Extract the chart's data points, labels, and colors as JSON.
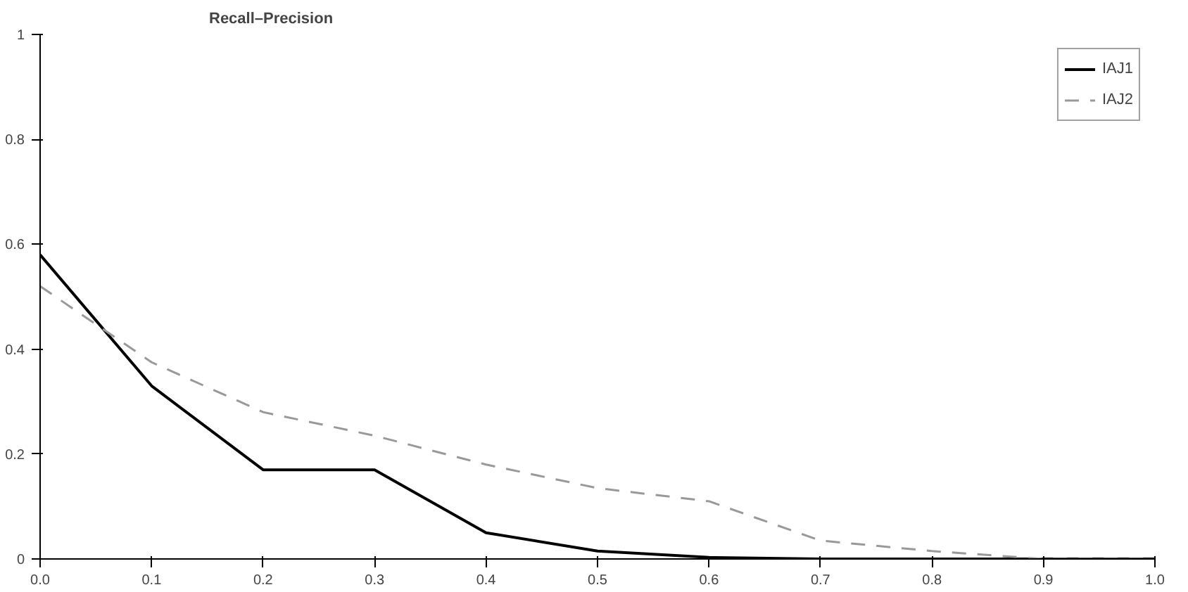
{
  "chart_data": {
    "type": "line",
    "title": "Recall–Precision",
    "x": [
      0,
      0.1,
      0.2,
      0.3,
      0.4,
      0.5,
      0.6,
      0.7,
      0.8,
      0.9,
      1.0
    ],
    "series": [
      {
        "name": "IAJ1",
        "color": "#000000",
        "line_style": "solid",
        "values": [
          0.58,
          0.33,
          0.17,
          0.17,
          0.05,
          0.015,
          0.003,
          0,
          0,
          0,
          0
        ]
      },
      {
        "name": "IAJ2",
        "color": "#999999",
        "line_style": "dashed",
        "values": [
          0.52,
          0.375,
          0.28,
          0.235,
          0.18,
          0.135,
          0.11,
          0.035,
          0.015,
          0,
          0
        ]
      }
    ],
    "xlim": [
      0,
      1.0
    ],
    "ylim": [
      0,
      1
    ],
    "xticks": [
      {
        "value": 0,
        "label": "0.0"
      },
      0.1,
      0.2,
      0.3,
      0.4,
      0.5,
      0.6,
      0.7,
      0.8,
      0.9,
      {
        "value": 1.0,
        "label": "1.0"
      }
    ],
    "yticks": [
      0,
      0.2,
      0.4,
      0.6,
      0.8,
      1
    ],
    "grid": false,
    "legend": "top right",
    "marker": "none"
  }
}
